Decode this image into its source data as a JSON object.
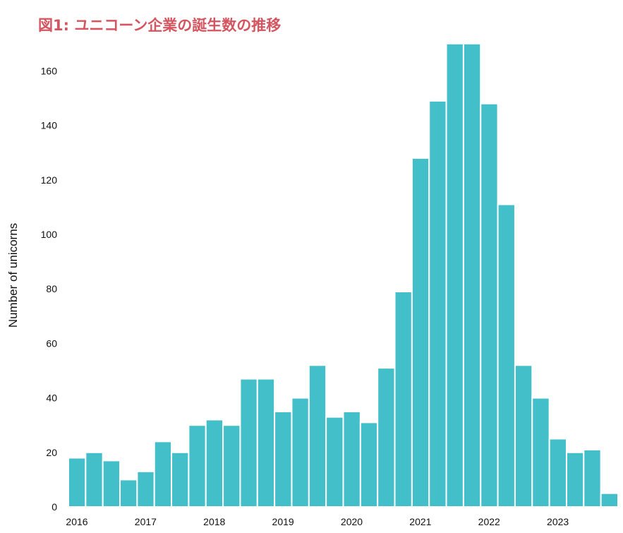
{
  "title": "図1: ユニコーン企業の誕生数の推移",
  "colors": {
    "bar": "#43bfc9",
    "title": "#d4555f",
    "bar_edge": "#ffffff"
  },
  "chart_data": {
    "type": "bar",
    "title": "図1: ユニコーン企業の誕生数の推移",
    "xlabel": "",
    "ylabel": "Number of unicorns",
    "ylim": [
      0,
      170
    ],
    "yticks": [
      0,
      20,
      40,
      60,
      80,
      100,
      120,
      140,
      160
    ],
    "xticks": [
      "2016",
      "2017",
      "2018",
      "2019",
      "2020",
      "2021",
      "2022",
      "2023"
    ],
    "bin_width": "quarter",
    "grid": false,
    "bins": [
      {
        "period": "2016 Q1",
        "value": 18
      },
      {
        "period": "2016 Q2",
        "value": 20
      },
      {
        "period": "2016 Q3",
        "value": 17
      },
      {
        "period": "2016 Q4",
        "value": 10
      },
      {
        "period": "2017 Q1",
        "value": 13
      },
      {
        "period": "2017 Q2",
        "value": 24
      },
      {
        "period": "2017 Q3",
        "value": 20
      },
      {
        "period": "2017 Q4",
        "value": 30
      },
      {
        "period": "2018 Q1",
        "value": 32
      },
      {
        "period": "2018 Q2",
        "value": 30
      },
      {
        "period": "2018 Q3",
        "value": 47
      },
      {
        "period": "2018 Q4",
        "value": 47
      },
      {
        "period": "2019 Q1",
        "value": 35
      },
      {
        "period": "2019 Q2",
        "value": 40
      },
      {
        "period": "2019 Q3",
        "value": 52
      },
      {
        "period": "2019 Q4",
        "value": 33
      },
      {
        "period": "2020 Q1",
        "value": 35
      },
      {
        "period": "2020 Q2",
        "value": 31
      },
      {
        "period": "2020 Q3",
        "value": 51
      },
      {
        "period": "2020 Q4",
        "value": 79
      },
      {
        "period": "2021 Q1",
        "value": 128
      },
      {
        "period": "2021 Q2",
        "value": 149
      },
      {
        "period": "2021 Q3",
        "value": 170
      },
      {
        "period": "2021 Q4",
        "value": 170
      },
      {
        "period": "2022 Q1",
        "value": 148
      },
      {
        "period": "2022 Q2",
        "value": 111
      },
      {
        "period": "2022 Q3",
        "value": 52
      },
      {
        "period": "2022 Q4",
        "value": 40
      },
      {
        "period": "2023 Q1",
        "value": 25
      },
      {
        "period": "2023 Q2",
        "value": 20
      },
      {
        "period": "2023 Q3",
        "value": 21
      },
      {
        "period": "2023 Q4",
        "value": 5
      }
    ]
  }
}
